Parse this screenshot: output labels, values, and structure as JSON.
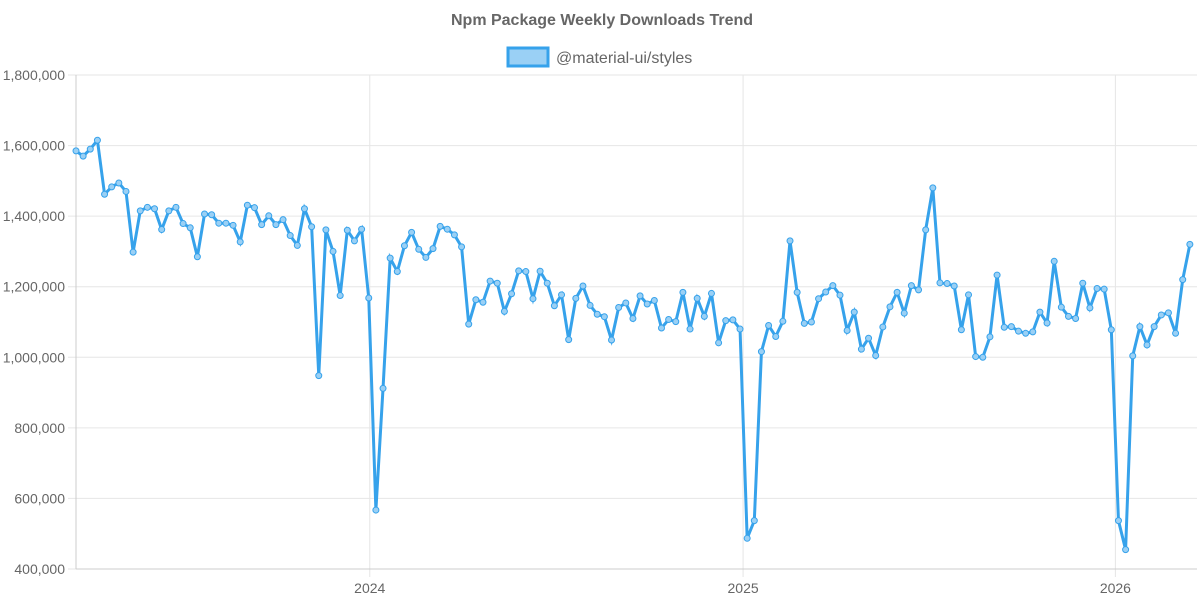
{
  "chart_data": {
    "type": "line",
    "title": "Npm Package Weekly Downloads Trend",
    "legend_position": "top-center",
    "series": [
      {
        "name": "@material-ui/styles",
        "color": "#36a2eb",
        "fill": "#9ad0f5",
        "start": "2023-03-19",
        "interval_days": 7,
        "values": [
          1585000,
          1570000,
          1590000,
          1615000,
          1462000,
          1483000,
          1494000,
          1470000,
          1298000,
          1415000,
          1425000,
          1421000,
          1362000,
          1415000,
          1425000,
          1379000,
          1367000,
          1285000,
          1406000,
          1404000,
          1380000,
          1380000,
          1374000,
          1327000,
          1431000,
          1424000,
          1376000,
          1401000,
          1376000,
          1390000,
          1345000,
          1317000,
          1421000,
          1370000,
          948000,
          1361000,
          1300000,
          1175000,
          1360000,
          1330000,
          1363000,
          1168000,
          567000,
          912000,
          1281000,
          1243000,
          1316000,
          1354000,
          1306000,
          1283000,
          1308000,
          1371000,
          1363000,
          1347000,
          1313000,
          1094000,
          1163000,
          1156000,
          1216000,
          1210000,
          1130000,
          1180000,
          1245000,
          1243000,
          1166000,
          1244000,
          1210000,
          1146000,
          1177000,
          1050000,
          1167000,
          1202000,
          1147000,
          1122000,
          1115000,
          1049000,
          1141000,
          1154000,
          1110000,
          1174000,
          1151000,
          1161000,
          1083000,
          1107000,
          1101000,
          1184000,
          1080000,
          1167000,
          1116000,
          1181000,
          1041000,
          1104000,
          1106000,
          1080000,
          487000,
          537000,
          1016000,
          1090000,
          1059000,
          1102000,
          1330000,
          1184000,
          1096000,
          1100000,
          1166000,
          1185000,
          1203000,
          1176000,
          1076000,
          1128000,
          1023000,
          1054000,
          1005000,
          1086000,
          1143000,
          1184000,
          1125000,
          1203000,
          1191000,
          1361000,
          1480000,
          1211000,
          1209000,
          1202000,
          1078000,
          1177000,
          1002000,
          1000000,
          1058000,
          1233000,
          1085000,
          1087000,
          1074000,
          1068000,
          1072000,
          1128000,
          1097000,
          1272000,
          1142000,
          1116000,
          1110000,
          1210000,
          1140000,
          1195000,
          1193000,
          1078000,
          537000,
          455000,
          1004000,
          1087000,
          1035000,
          1087000,
          1120000,
          1126000,
          1068000,
          1220000,
          1320000
        ]
      }
    ],
    "x_ticks": [
      {
        "label": "2024",
        "date": "2024-01-01"
      },
      {
        "label": "2025",
        "date": "2025-01-01"
      },
      {
        "label": "2026",
        "date": "2026-01-01"
      }
    ],
    "xlim": [
      "2023-03-19",
      "2026-03-22"
    ],
    "y_ticks": [
      {
        "label": "1,800,000",
        "value": 1800000
      },
      {
        "label": "1,600,000",
        "value": 1600000
      },
      {
        "label": "1,400,000",
        "value": 1400000
      },
      {
        "label": "1,200,000",
        "value": 1200000
      },
      {
        "label": "1,000,000",
        "value": 1000000
      },
      {
        "label": "800,000",
        "value": 800000
      },
      {
        "label": "600,000",
        "value": 600000
      },
      {
        "label": "400,000",
        "value": 400000
      }
    ],
    "ylim": [
      400000,
      1800000
    ],
    "xlabel": "",
    "ylabel": "",
    "grid": true
  }
}
